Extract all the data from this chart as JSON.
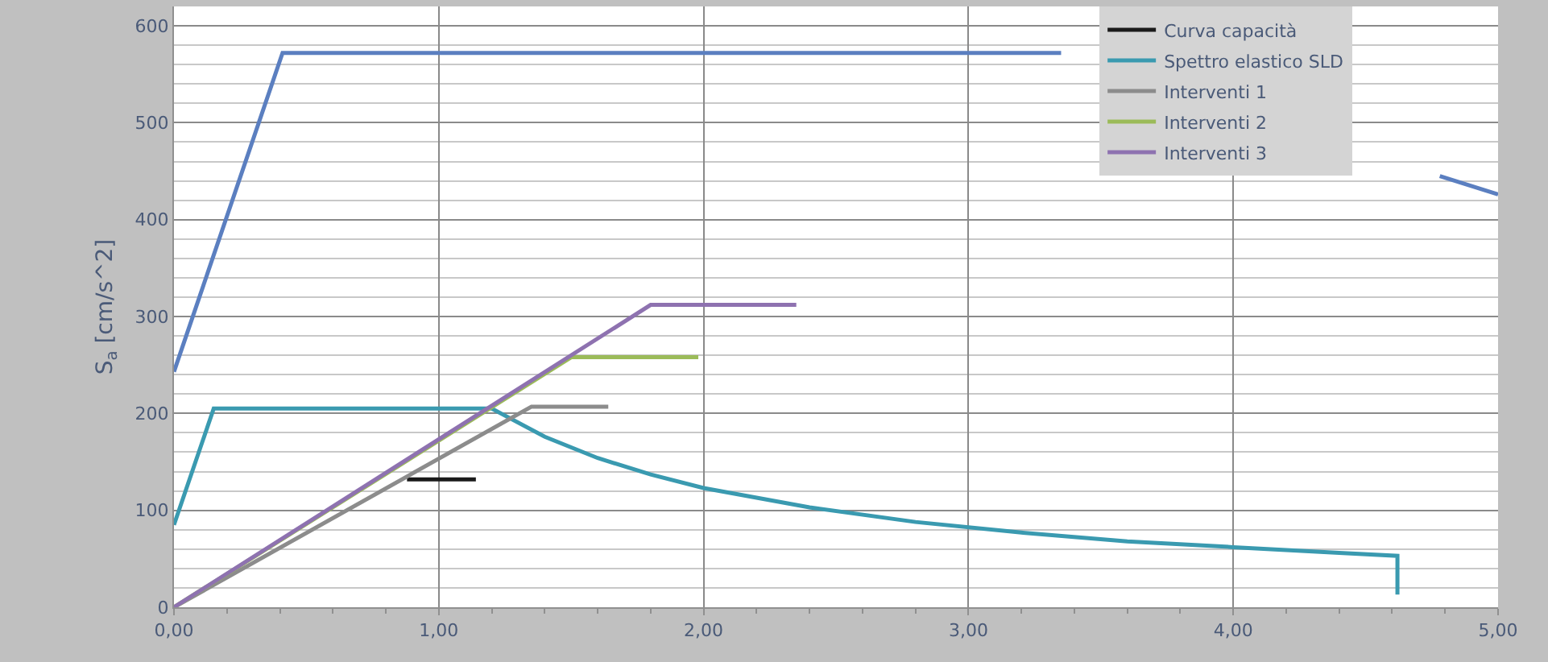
{
  "chart_data": {
    "type": "line",
    "ylabel": "S$_{a}$ [cm/s^2]",
    "xlim": [
      0,
      5
    ],
    "xticks": [
      {
        "value": 0,
        "label": "0,00"
      },
      {
        "value": 1,
        "label": "1,00"
      },
      {
        "value": 2,
        "label": "2,00"
      },
      {
        "value": 3,
        "label": "3,00"
      },
      {
        "value": 4,
        "label": "4,00"
      },
      {
        "value": 5,
        "label": "5,00"
      }
    ],
    "ylim": [
      0,
      620
    ],
    "yticks": [
      0,
      100,
      200,
      300,
      400,
      500,
      600
    ],
    "grid": true,
    "legend": "top right",
    "line_style": "solid",
    "marker": "none",
    "series": [
      {
        "color": "#5b7fc0",
        "x": [
          0,
          0.41,
          3.35,
          3.36,
          4.78,
          5.0
        ],
        "values": [
          243,
          572,
          572,
          null,
          445,
          426
        ]
      },
      {
        "name": "Curva capacità",
        "color": "#1a1a1a",
        "x": [
          0.88,
          1.14
        ],
        "values": [
          132,
          132
        ]
      },
      {
        "name": "Spettro elastico SLD",
        "color": "#3a9ab0",
        "x": [
          0,
          0.15,
          1.2,
          1.4,
          1.6,
          1.8,
          2.0,
          2.4,
          2.8,
          3.2,
          3.6,
          4.0,
          4.4,
          4.62,
          4.62
        ],
        "values": [
          85,
          205,
          205,
          176,
          154,
          137,
          123,
          103,
          88,
          77,
          68,
          62,
          56,
          53,
          13
        ]
      },
      {
        "name": "Interventi 1",
        "color": "#8c8c8c",
        "x": [
          0,
          1.35,
          1.64
        ],
        "values": [
          0,
          207,
          207
        ]
      },
      {
        "name": "Interventi 2",
        "color": "#9bbb59",
        "x": [
          0,
          1.5,
          1.98
        ],
        "values": [
          0,
          258,
          258
        ]
      },
      {
        "name": "Interventi 3",
        "color": "#8e72b0",
        "x": [
          0,
          1.8,
          2.35
        ],
        "values": [
          0,
          312,
          312
        ]
      }
    ]
  }
}
